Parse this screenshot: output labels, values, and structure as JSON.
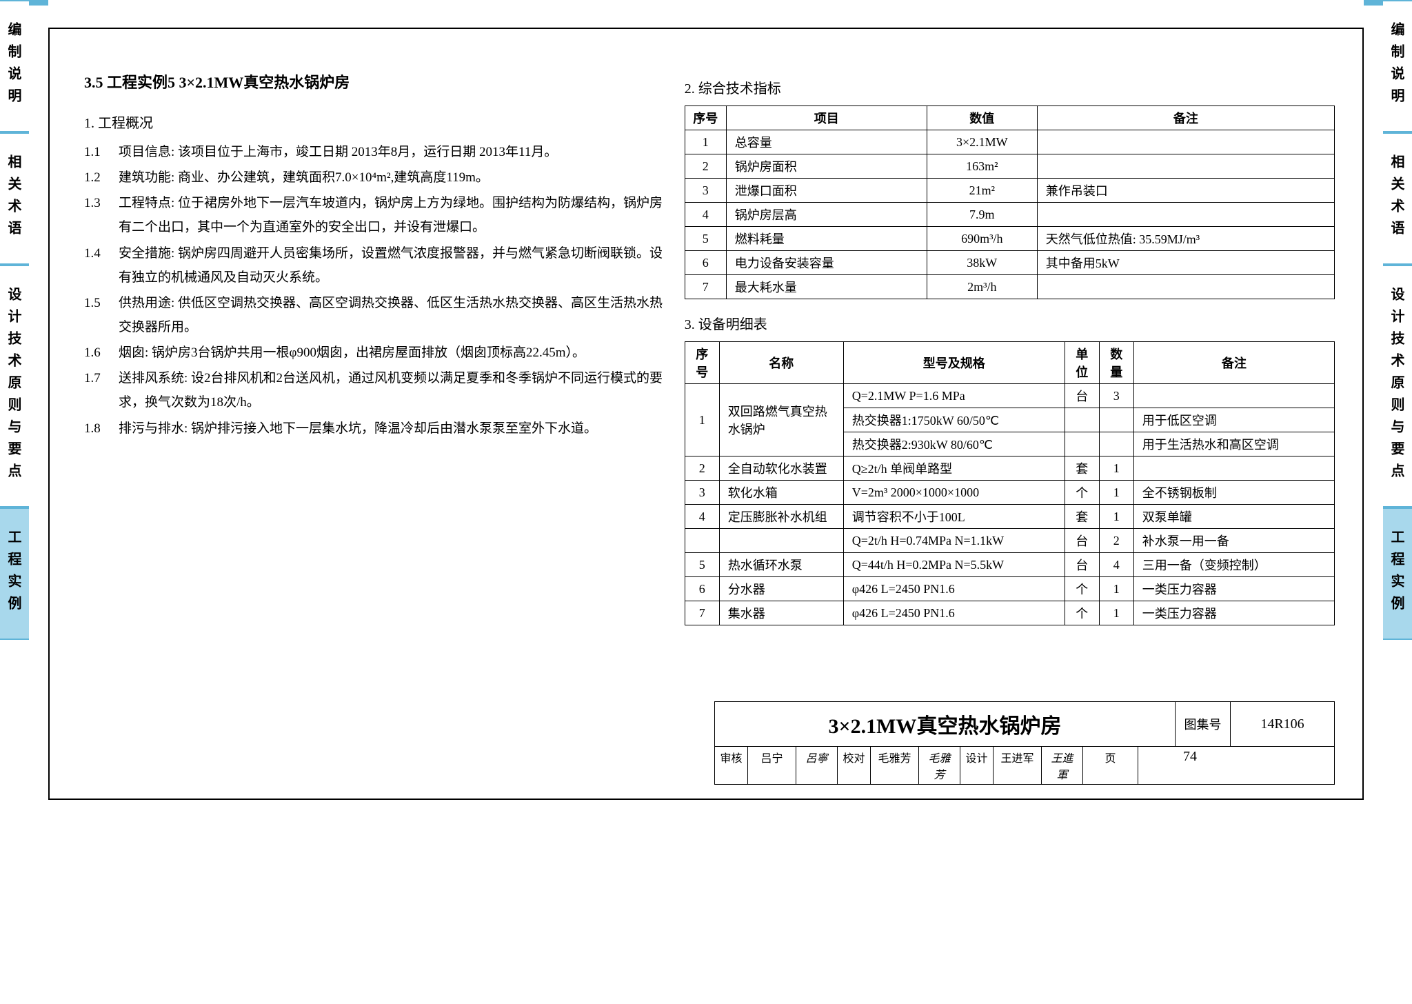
{
  "tabs": [
    "编制说明",
    "相关术语",
    "设计技术原则与要点",
    "工程实例"
  ],
  "active_tab_index": 3,
  "heading": "3.5 工程实例5  3×2.1MW真空热水锅炉房",
  "s1_title": "1. 工程概况",
  "s1": [
    {
      "n": "1.1",
      "lbl": "项目信息:",
      "t": "该项目位于上海市，竣工日期 2013年8月，运行日期 2013年11月。"
    },
    {
      "n": "1.2",
      "lbl": "建筑功能:",
      "t": "商业、办公建筑，建筑面积7.0×10⁴m²,建筑高度119m。"
    },
    {
      "n": "1.3",
      "lbl": "工程特点:",
      "t": "位于裙房外地下一层汽车坡道内，锅炉房上方为绿地。围护结构为防爆结构，锅炉房有二个出口，其中一个为直通室外的安全出口，并设有泄爆口。"
    },
    {
      "n": "1.4",
      "lbl": "安全措施:",
      "t": "锅炉房四周避开人员密集场所，设置燃气浓度报警器，并与燃气紧急切断阀联锁。设有独立的机械通风及自动灭火系统。"
    },
    {
      "n": "1.5",
      "lbl": "供热用途:",
      "t": "供低区空调热交换器、高区空调热交换器、低区生活热水热交换器、高区生活热水热交换器所用。"
    },
    {
      "n": "1.6",
      "lbl": "烟囱:",
      "t": "锅炉房3台锅炉共用一根φ900烟囱，出裙房屋面排放（烟囱顶标高22.45m）。"
    },
    {
      "n": "1.7",
      "lbl": "送排风系统:",
      "t": "设2台排风机和2台送风机，通过风机变频以满足夏季和冬季锅炉不同运行模式的要求，换气次数为18次/h。"
    },
    {
      "n": "1.8",
      "lbl": "排污与排水:",
      "t": "锅炉排污接入地下一层集水坑，降温冷却后由潜水泵泵至室外下水道。"
    }
  ],
  "s2_title": "2. 综合技术指标",
  "t2_headers": [
    "序号",
    "项目",
    "数值",
    "备注"
  ],
  "t2_rows": [
    [
      "1",
      "总容量",
      "3×2.1MW",
      ""
    ],
    [
      "2",
      "锅炉房面积",
      "163m²",
      ""
    ],
    [
      "3",
      "泄爆口面积",
      "21m²",
      "兼作吊装口"
    ],
    [
      "4",
      "锅炉房层高",
      "7.9m",
      ""
    ],
    [
      "5",
      "燃料耗量",
      "690m³/h",
      "天然气低位热值: 35.59MJ/m³"
    ],
    [
      "6",
      "电力设备安装容量",
      "38kW",
      "其中备用5kW"
    ],
    [
      "7",
      "最大耗水量",
      "2m³/h",
      ""
    ]
  ],
  "s3_title": "3. 设备明细表",
  "t3_headers": [
    "序号",
    "名称",
    "型号及规格",
    "单位",
    "数量",
    "备注"
  ],
  "t3_rows": [
    {
      "no": "1",
      "name": "双回路燃气真空热水锅炉",
      "rowspan": 3,
      "spec": "Q=2.1MW  P=1.6 MPa",
      "unit": "台",
      "qty": "3",
      "remark": ""
    },
    {
      "spec": "热交换器1:1750kW 60/50℃",
      "unit": "",
      "qty": "",
      "remark": "用于低区空调"
    },
    {
      "spec": "热交换器2:930kW 80/60℃",
      "unit": "",
      "qty": "",
      "remark": "用于生活热水和高区空调"
    },
    {
      "no": "2",
      "name": "全自动软化水装置",
      "spec": "Q≥2t/h  单阀单路型",
      "unit": "套",
      "qty": "1",
      "remark": ""
    },
    {
      "no": "3",
      "name": "软化水箱",
      "spec": "V=2m³ 2000×1000×1000",
      "unit": "个",
      "qty": "1",
      "remark": "全不锈钢板制"
    },
    {
      "no": "4",
      "name": "定压膨胀补水机组",
      "spec": "调节容积不小于100L",
      "unit": "套",
      "qty": "1",
      "remark": "双泵单罐"
    },
    {
      "no": "",
      "name": "",
      "spec": "Q=2t/h H=0.74MPa N=1.1kW",
      "unit": "台",
      "qty": "2",
      "remark": "补水泵一用一备"
    },
    {
      "no": "5",
      "name": "热水循环水泵",
      "spec": "Q=44t/h H=0.2MPa N=5.5kW",
      "unit": "台",
      "qty": "4",
      "remark": "三用一备（变频控制）"
    },
    {
      "no": "6",
      "name": "分水器",
      "spec": "φ426  L=2450  PN1.6",
      "unit": "个",
      "qty": "1",
      "remark": "一类压力容器"
    },
    {
      "no": "7",
      "name": "集水器",
      "spec": "φ426  L=2450  PN1.6",
      "unit": "个",
      "qty": "1",
      "remark": "一类压力容器"
    }
  ],
  "title_block": {
    "title": "3×2.1MW真空热水锅炉房",
    "set_label": "图集号",
    "set_code": "14R106",
    "審核": "审核",
    "审核name": "吕宁",
    "审核sig": "呂寧",
    "校对": "校对",
    "校对name": "毛雅芳",
    "校对sig": "毛雅芳",
    "设计": "设计",
    "设计name": "王进军",
    "设计sig": "王進軍",
    "页": "页",
    "页num": "74"
  }
}
